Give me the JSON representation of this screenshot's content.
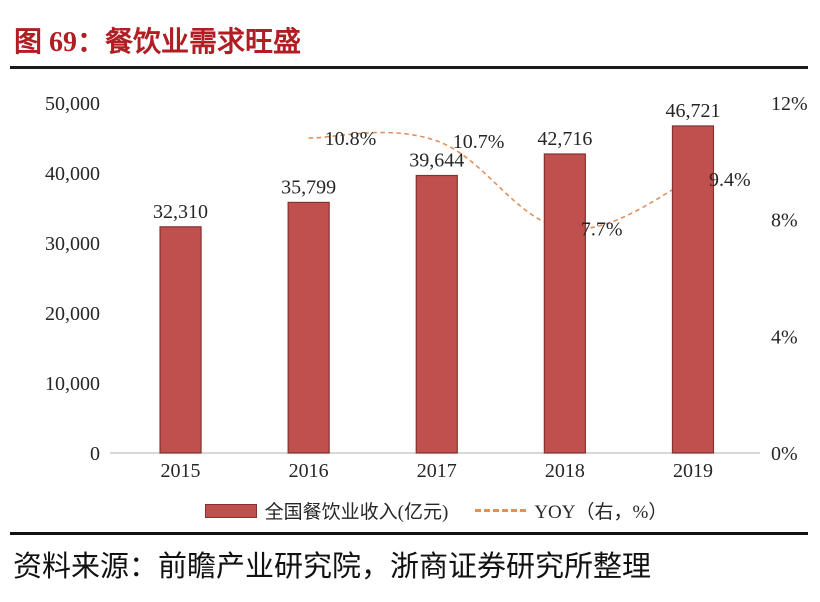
{
  "figure": {
    "title": "图 69：餐饮业需求旺盛",
    "title_color": "#B01E24"
  },
  "source": {
    "text": "资料来源：前瞻产业研究院，浙商证券研究所整理"
  },
  "chart_data": {
    "type": "bar",
    "categories": [
      "2015",
      "2016",
      "2017",
      "2018",
      "2019"
    ],
    "series": [
      {
        "name": "全国餐饮业收入(亿元)",
        "type": "bar",
        "axis": "left",
        "values": [
          32310,
          35799,
          39644,
          42716,
          46721
        ],
        "data_labels": [
          "32,310",
          "35,799",
          "39,644",
          "42,716",
          "46,721"
        ],
        "color": "#C0504D",
        "border_color": "#833230"
      },
      {
        "name": "YOY（右，%）",
        "type": "line",
        "axis": "right",
        "dashed": true,
        "values": [
          null,
          10.8,
          10.7,
          7.7,
          9.4
        ],
        "data_labels": [
          "",
          "10.8%",
          "10.7%",
          "7.7%",
          "9.4%"
        ],
        "color": "#E2905A"
      }
    ],
    "left_axis": {
      "min": 0,
      "max": 50000,
      "step": 10000,
      "tick_labels": [
        "0",
        "10,000",
        "20,000",
        "30,000",
        "40,000",
        "50,000"
      ]
    },
    "right_axis": {
      "min": 0,
      "max": 12,
      "step": 4,
      "tick_labels": [
        "0%",
        "4%",
        "8%",
        "12%"
      ]
    },
    "axis_line_color": "#BFBFBF",
    "text_color": "#262626",
    "legend_position": "bottom",
    "grid": false
  }
}
